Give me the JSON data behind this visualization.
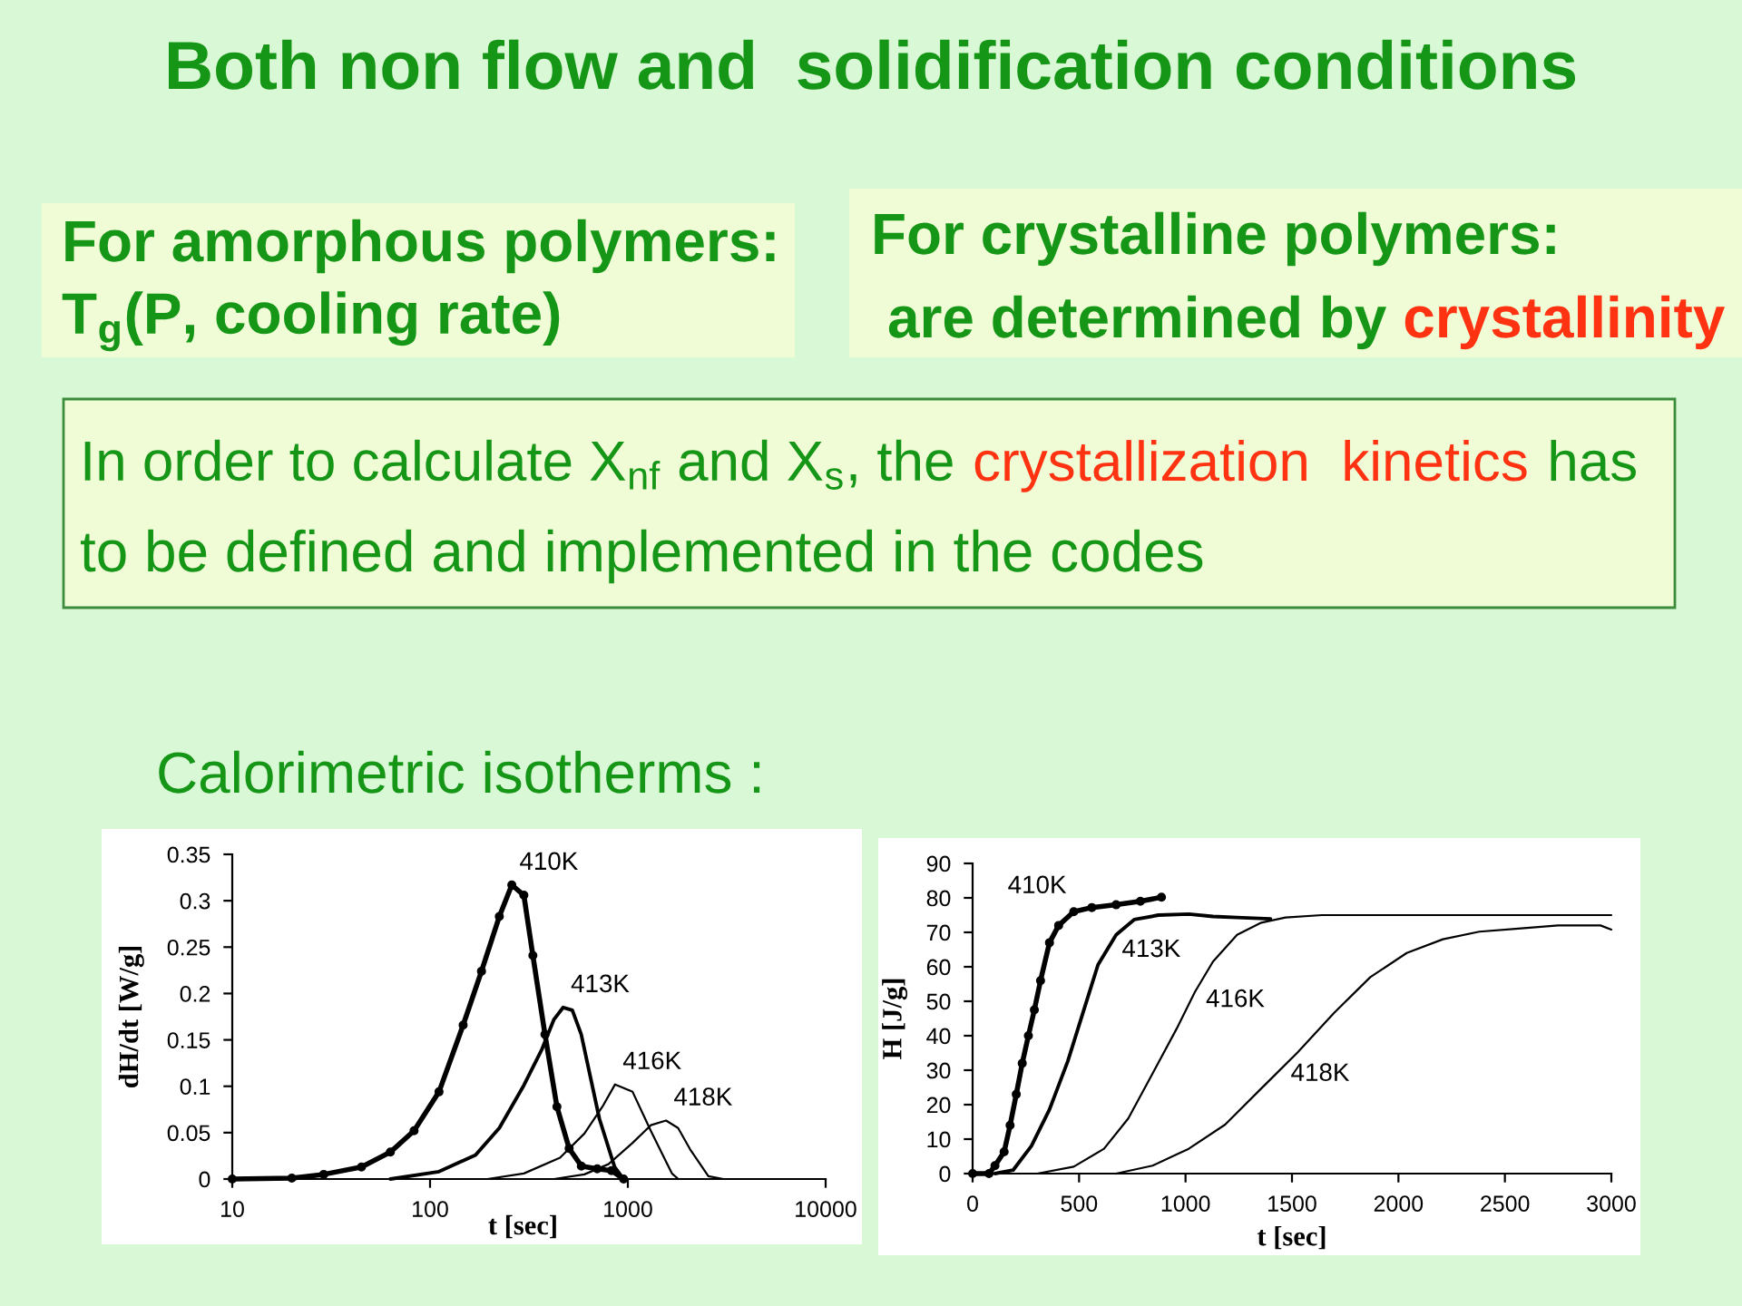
{
  "chart_data": [
    {
      "type": "other",
      "title": "Both non flow and  solidification conditions",
      "annotations": [
        "For amorphous polymers:",
        "T$_{g}$(P, cooling rate)",
        "For crystalline polymers:",
        "are determined by",
        "crystallinity",
        "In order to calculate X$_{nf}$ and X$_{s}$, the",
        "crystallization  kinetics",
        "has",
        "to be defined and implemented in the codes",
        "Calorimetric isotherms :"
      ]
    },
    {
      "type": "line",
      "xlabel": "t [sec]",
      "ylabel": "dH/dt [W/g]",
      "log": "x",
      "xlim": [
        10,
        10000
      ],
      "xticks": [
        10,
        100,
        1000,
        10000
      ],
      "ylim": [
        0,
        0.35
      ],
      "yticks": [
        0,
        0.05,
        0.1,
        0.15,
        0.2,
        0.25,
        0.3,
        0.35
      ],
      "series": [
        {
          "name": "410K",
          "color": "#000000",
          "marker": "circle",
          "x": [
            10,
            20,
            29,
            45,
            63,
            83,
            111,
            147,
            182,
            224,
            259,
            298,
            331,
            381,
            438,
            505,
            582,
            700,
            826,
            952
          ],
          "values": [
            0,
            0.001,
            0.005,
            0.013,
            0.029,
            0.052,
            0.094,
            0.166,
            0.224,
            0.283,
            0.317,
            0.306,
            0.241,
            0.156,
            0.078,
            0.033,
            0.014,
            0.011,
            0.009,
            0
          ]
        },
        {
          "name": "413K",
          "color": "#000000",
          "x": [
            63,
            111,
            170,
            224,
            298,
            368,
            423,
            471,
            524,
            581,
            718,
            857,
            950
          ],
          "values": [
            0,
            0.008,
            0.026,
            0.055,
            0.101,
            0.14,
            0.172,
            0.185,
            0.182,
            0.156,
            0.065,
            0.013,
            0
          ]
        },
        {
          "name": "416K",
          "color": "#000000",
          "x": [
            195,
            298,
            454,
            603,
            744,
            862,
            1057,
            1306,
            1670,
            1800
          ],
          "values": [
            0,
            0.006,
            0.023,
            0.049,
            0.078,
            0.102,
            0.094,
            0.052,
            0.006,
            0
          ]
        },
        {
          "name": "418K",
          "color": "#000000",
          "x": [
            423,
            603,
            798,
            1057,
            1306,
            1560,
            1795,
            2065,
            2553,
            3044
          ],
          "values": [
            0,
            0.005,
            0.016,
            0.039,
            0.058,
            0.063,
            0.055,
            0.032,
            0.003,
            0
          ]
        }
      ]
    },
    {
      "type": "line",
      "xlabel": "t [sec]",
      "ylabel": "H [J/g]",
      "xlim": [
        0,
        3000
      ],
      "xticks": [
        0,
        500,
        1000,
        1500,
        2000,
        2500,
        3000
      ],
      "ylim": [
        0,
        90
      ],
      "yticks": [
        0,
        10,
        20,
        30,
        40,
        50,
        60,
        70,
        80,
        90
      ],
      "series": [
        {
          "name": "410K",
          "color": "#000000",
          "marker": "circle",
          "x": [
            0,
            77,
            105,
            148,
            176,
            205,
            233,
            262,
            290,
            319,
            361,
            404,
            475,
            560,
            674,
            788,
            887
          ],
          "values": [
            0,
            0,
            2.3,
            6.3,
            14,
            23,
            32,
            40,
            47.5,
            56,
            67,
            72,
            76,
            77.2,
            78,
            79,
            80.2
          ]
        },
        {
          "name": "413K",
          "color": "#000000",
          "x": [
            105,
            190,
            276,
            361,
            447,
            518,
            589,
            674,
            759,
            873,
            1015,
            1129,
            1242,
            1399
          ],
          "values": [
            0,
            1,
            8,
            18.6,
            32.6,
            46.6,
            60.6,
            69.3,
            73.7,
            75,
            75.3,
            74.6,
            74.3,
            73.9
          ]
        },
        {
          "name": "416K",
          "color": "#000000",
          "x": [
            304,
            475,
            617,
            731,
            845,
            958,
            1044,
            1129,
            1242,
            1356,
            1470,
            1641,
            2380,
            3000
          ],
          "values": [
            0,
            2,
            7.2,
            16,
            29,
            42,
            52.7,
            61.5,
            69.3,
            72.8,
            74.3,
            75,
            75,
            75
          ]
        },
        {
          "name": "418K",
          "color": "#000000",
          "x": [
            674,
            845,
            1015,
            1186,
            1356,
            1527,
            1697,
            1868,
            2039,
            2209,
            2380,
            2550,
            2750,
            2949,
            3000
          ],
          "values": [
            0,
            2.3,
            7.2,
            14.2,
            24.7,
            35.2,
            46.6,
            57,
            64,
            68,
            70.2,
            71,
            72,
            72,
            70.8
          ]
        }
      ]
    }
  ]
}
